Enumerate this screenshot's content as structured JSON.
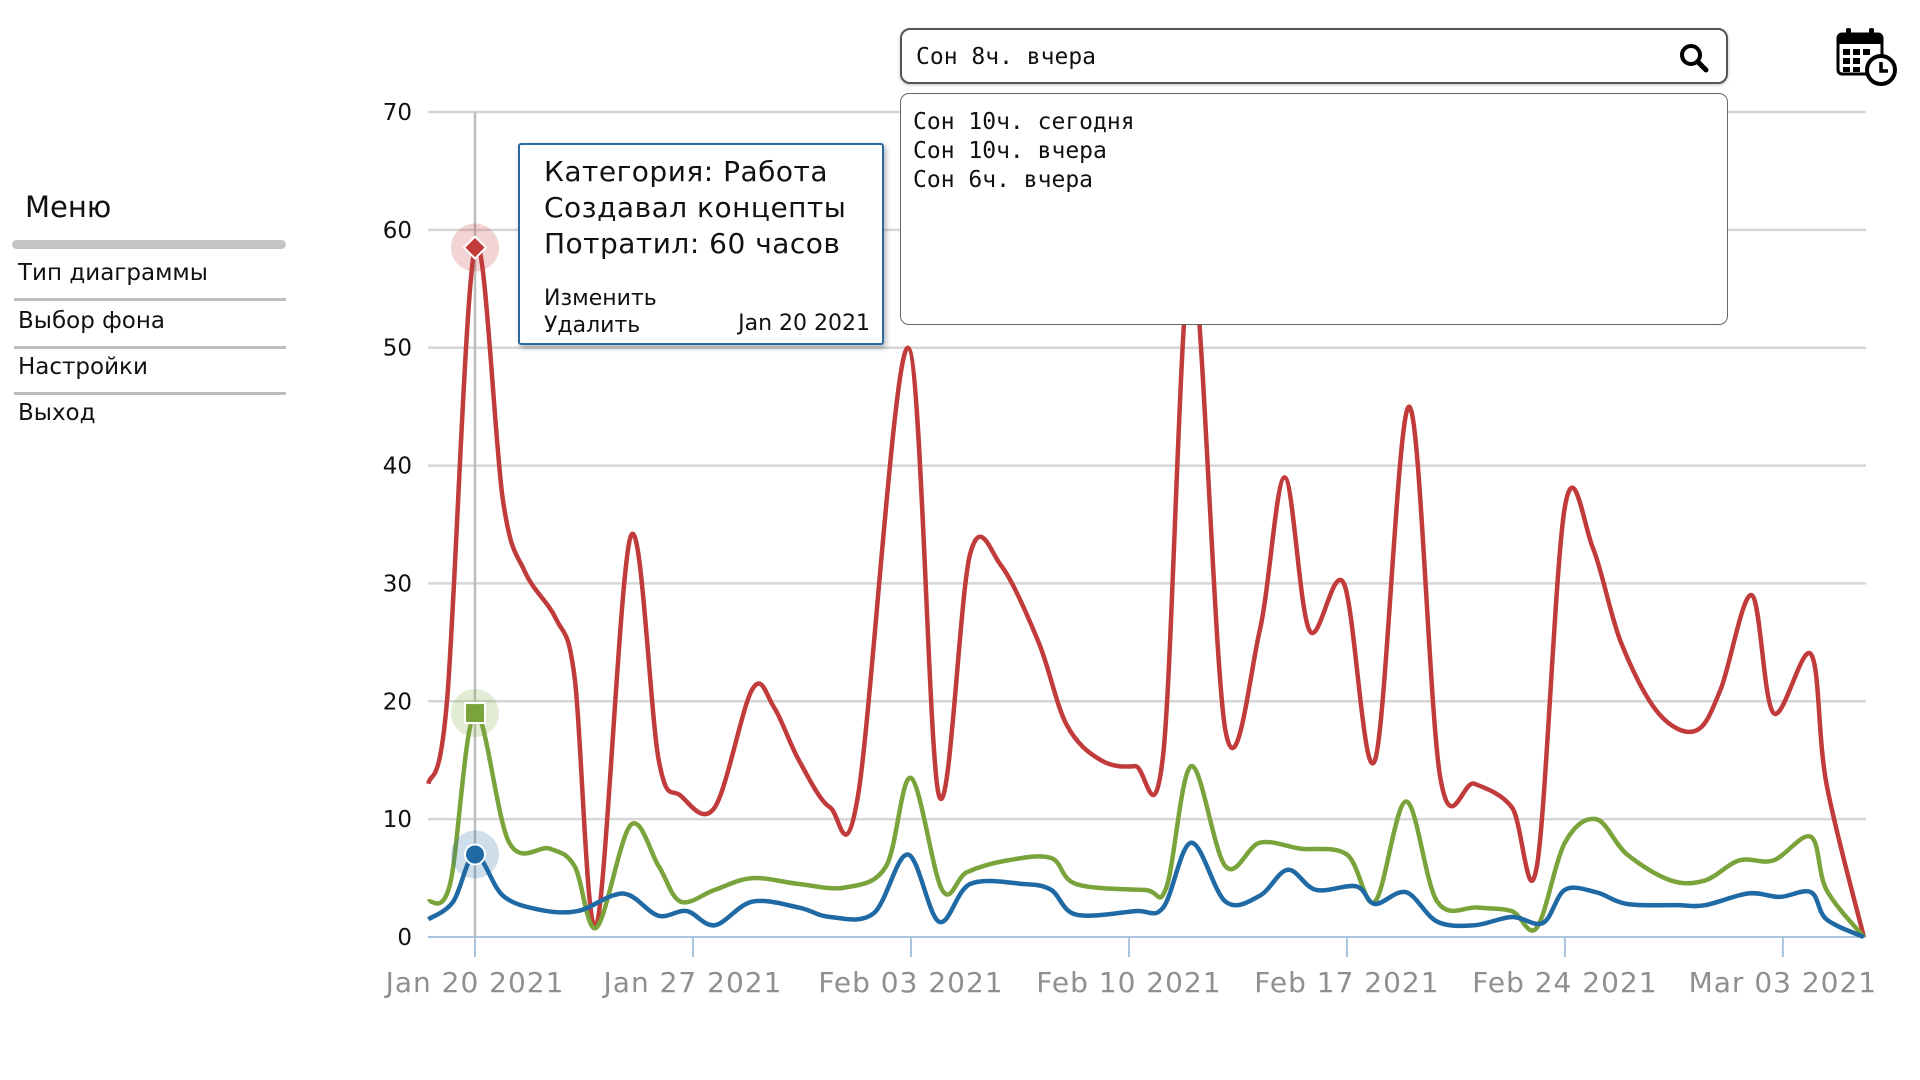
{
  "menu": {
    "title": "Меню",
    "items": [
      {
        "label": "Тип диаграммы"
      },
      {
        "label": "Выбор фона"
      },
      {
        "label": "Настройки"
      },
      {
        "label": "Выход"
      }
    ]
  },
  "search": {
    "value": "Сон 8ч. вчера",
    "icon": "search-icon",
    "suggestions": [
      "Сон 10ч. сегодня",
      "Сон 10ч. вчера",
      "Сон 6ч. вчера"
    ]
  },
  "calendar": {
    "icon": "calendar-clock-icon"
  },
  "tooltip": {
    "line1": "Категория: Работа",
    "line2": "Создавал концепты",
    "line3": "Потратил: 60 часов",
    "edit": "Изменить",
    "delete": "Удалить",
    "date": "Jan 20 2021",
    "border_color": "#2b6aa0"
  },
  "chart_data": {
    "type": "line",
    "ylim": [
      0,
      70
    ],
    "yticks": [
      "0",
      "10",
      "20",
      "30",
      "40",
      "50",
      "60",
      "70"
    ],
    "xticks": [
      "Jan 20 2021",
      "Jan 27 2021",
      "Feb 03 2021",
      "Feb 10 2021",
      "Feb 17 2021",
      "Feb 24 2021",
      "Mar 03 2021"
    ],
    "x_range_days": [
      -1.5,
      44.6
    ],
    "highlight_day": 0,
    "series": [
      {
        "color": "#c23b3b",
        "points": [
          [
            -1.5,
            13
          ],
          [
            -0.9,
            20
          ],
          [
            0,
            58.5
          ],
          [
            0.9,
            37
          ],
          [
            1.6,
            31
          ],
          [
            2.6,
            27
          ],
          [
            3.2,
            22
          ],
          [
            3.9,
            1
          ],
          [
            5,
            34
          ],
          [
            5.9,
            15
          ],
          [
            6.6,
            12
          ],
          [
            7.7,
            11
          ],
          [
            8.9,
            21
          ],
          [
            9.6,
            19.5
          ],
          [
            10.4,
            15
          ],
          [
            11.4,
            11
          ],
          [
            12.3,
            12
          ],
          [
            13.9,
            50
          ],
          [
            14.9,
            12
          ],
          [
            15.9,
            32.5
          ],
          [
            16.9,
            31.5
          ],
          [
            18.1,
            25
          ],
          [
            19,
            18
          ],
          [
            20.1,
            15
          ],
          [
            21.2,
            14.5
          ],
          [
            22.1,
            15.5
          ],
          [
            23,
            57.5
          ],
          [
            24.1,
            17.5
          ],
          [
            25.2,
            26
          ],
          [
            26,
            39
          ],
          [
            26.8,
            26
          ],
          [
            27.9,
            30
          ],
          [
            28.9,
            15
          ],
          [
            30,
            45
          ],
          [
            31,
            13.5
          ],
          [
            32.1,
            13
          ],
          [
            33.3,
            11
          ],
          [
            34.1,
            6
          ],
          [
            35,
            36.5
          ],
          [
            35.9,
            33
          ],
          [
            36.8,
            25
          ],
          [
            38,
            19
          ],
          [
            39.2,
            17.5
          ],
          [
            40,
            21
          ],
          [
            41,
            29
          ],
          [
            41.7,
            19
          ],
          [
            42.9,
            24
          ],
          [
            43.4,
            13
          ],
          [
            44.6,
            0
          ]
        ]
      },
      {
        "color": "#7aa33c",
        "points": [
          [
            -1.5,
            3
          ],
          [
            -0.8,
            4.5
          ],
          [
            0,
            19
          ],
          [
            1.1,
            8
          ],
          [
            2.4,
            7.5
          ],
          [
            3.2,
            6
          ],
          [
            3.9,
            0.8
          ],
          [
            5,
            9.5
          ],
          [
            5.9,
            6
          ],
          [
            6.6,
            3
          ],
          [
            7.7,
            4
          ],
          [
            8.9,
            5
          ],
          [
            10.4,
            4.5
          ],
          [
            11.9,
            4.2
          ],
          [
            13.2,
            6
          ],
          [
            14,
            13.5
          ],
          [
            15,
            4
          ],
          [
            15.8,
            5.5
          ],
          [
            17.1,
            6.5
          ],
          [
            18.5,
            6.7
          ],
          [
            19.3,
            4.5
          ],
          [
            21.5,
            4
          ],
          [
            22.2,
            4.2
          ],
          [
            23,
            14.5
          ],
          [
            24.1,
            6
          ],
          [
            25.2,
            8
          ],
          [
            26.5,
            7.5
          ],
          [
            28,
            7
          ],
          [
            28.9,
            3
          ],
          [
            29.9,
            11.5
          ],
          [
            30.9,
            3
          ],
          [
            32.2,
            2.5
          ],
          [
            33.3,
            2.2
          ],
          [
            34.1,
            0.8
          ],
          [
            35,
            8
          ],
          [
            36,
            10
          ],
          [
            37,
            7
          ],
          [
            38.4,
            4.8
          ],
          [
            39.5,
            4.8
          ],
          [
            40.6,
            6.5
          ],
          [
            41.7,
            6.5
          ],
          [
            42.9,
            8.5
          ],
          [
            43.4,
            4
          ],
          [
            44.6,
            0
          ]
        ]
      },
      {
        "color": "#1f6aa5",
        "points": [
          [
            -1.5,
            1.5
          ],
          [
            -0.7,
            3
          ],
          [
            0,
            7
          ],
          [
            0.9,
            3.5
          ],
          [
            2.1,
            2.3
          ],
          [
            3.3,
            2.2
          ],
          [
            4.4,
            3.5
          ],
          [
            5,
            3.5
          ],
          [
            5.9,
            1.8
          ],
          [
            6.8,
            2.2
          ],
          [
            7.7,
            1
          ],
          [
            8.9,
            3
          ],
          [
            10.4,
            2.5
          ],
          [
            11.4,
            1.7
          ],
          [
            12.8,
            2
          ],
          [
            13.9,
            7
          ],
          [
            14.9,
            1.3
          ],
          [
            15.9,
            4.5
          ],
          [
            17.6,
            4.5
          ],
          [
            18.5,
            4
          ],
          [
            19.3,
            1.9
          ],
          [
            21.2,
            2.2
          ],
          [
            22.1,
            2.5
          ],
          [
            23,
            8
          ],
          [
            24.1,
            3
          ],
          [
            25.2,
            3.5
          ],
          [
            26.1,
            5.7
          ],
          [
            27,
            4
          ],
          [
            28.3,
            4.3
          ],
          [
            28.9,
            2.8
          ],
          [
            29.9,
            3.8
          ],
          [
            30.9,
            1.3
          ],
          [
            32.1,
            1
          ],
          [
            33.3,
            1.7
          ],
          [
            34.3,
            1.2
          ],
          [
            35,
            4
          ],
          [
            36,
            3.8
          ],
          [
            37,
            2.8
          ],
          [
            38.6,
            2.7
          ],
          [
            39.5,
            2.7
          ],
          [
            40.9,
            3.7
          ],
          [
            41.9,
            3.4
          ],
          [
            42.9,
            3.8
          ],
          [
            43.4,
            1.5
          ],
          [
            44.6,
            0
          ]
        ]
      }
    ]
  }
}
